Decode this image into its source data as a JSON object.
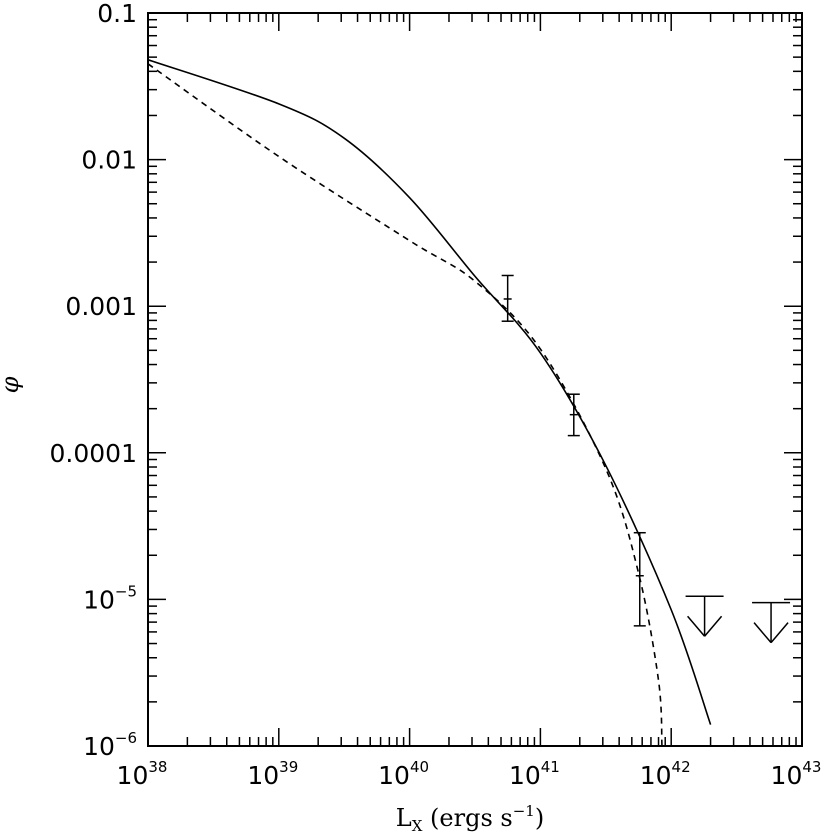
{
  "chart_data": {
    "type": "line",
    "x_scale": "log",
    "y_scale": "log",
    "xlim": [
      1e+38,
      1e+43
    ],
    "ylim": [
      1e-06,
      0.1
    ],
    "xlabel": {
      "main": "L",
      "sub": "X",
      "rest": " (ergs s",
      "sup": "−1",
      "close": ")"
    },
    "ylabel": "φ",
    "x_ticks": [
      {
        "base": "10",
        "exp": "38"
      },
      {
        "base": "10",
        "exp": "39"
      },
      {
        "base": "10",
        "exp": "40"
      },
      {
        "base": "10",
        "exp": "41"
      },
      {
        "base": "10",
        "exp": "42"
      },
      {
        "base": "10",
        "exp": "43"
      }
    ],
    "y_ticks": [
      {
        "text": "0.1",
        "exp": ""
      },
      {
        "text": "0.01",
        "exp": ""
      },
      {
        "text": "0.001",
        "exp": ""
      },
      {
        "text": "0.0001",
        "exp": ""
      },
      {
        "text": "10",
        "exp": "−5"
      },
      {
        "text": "10",
        "exp": "−6"
      }
    ],
    "series": [
      {
        "style": "solid",
        "x": [
          1e+38,
          1e+39,
          3.16e+39,
          1e+40,
          3.16e+40,
          1e+41,
          3.16e+41,
          1e+42,
          2e+42
        ],
        "y": [
          0.048,
          0.024,
          0.014,
          0.0055,
          0.0016,
          0.00048,
          8.2e-05,
          8.5e-06,
          1.4e-06
        ]
      },
      {
        "style": "dashed",
        "x": [
          1e+38,
          1e+39,
          1e+40,
          3.16e+40,
          1e+41,
          3.16e+41,
          5.62e+41,
          8e+41,
          8.5e+41
        ],
        "y": [
          0.045,
          0.0105,
          0.0028,
          0.00148,
          0.00051,
          7.8e-05,
          1.52e-05,
          2.8e-06,
          1e-06
        ]
      }
    ],
    "data_points": [
      {
        "x": 5.62e+40,
        "y": 0.00112,
        "y_low": 0.00079,
        "y_high": 0.00162
      },
      {
        "x": 1.8e+41,
        "y": 0.000182,
        "y_low": 0.000131,
        "y_high": 0.000251
      },
      {
        "x": 5.75e+41,
        "y": 1.45e-05,
        "y_low": 6.6e-06,
        "y_high": 2.85e-05
      }
    ],
    "upper_limits": [
      {
        "x": 1.8e+42,
        "y": 1.05e-05
      },
      {
        "x": 5.8e+42,
        "y": 9.5e-06
      }
    ]
  }
}
